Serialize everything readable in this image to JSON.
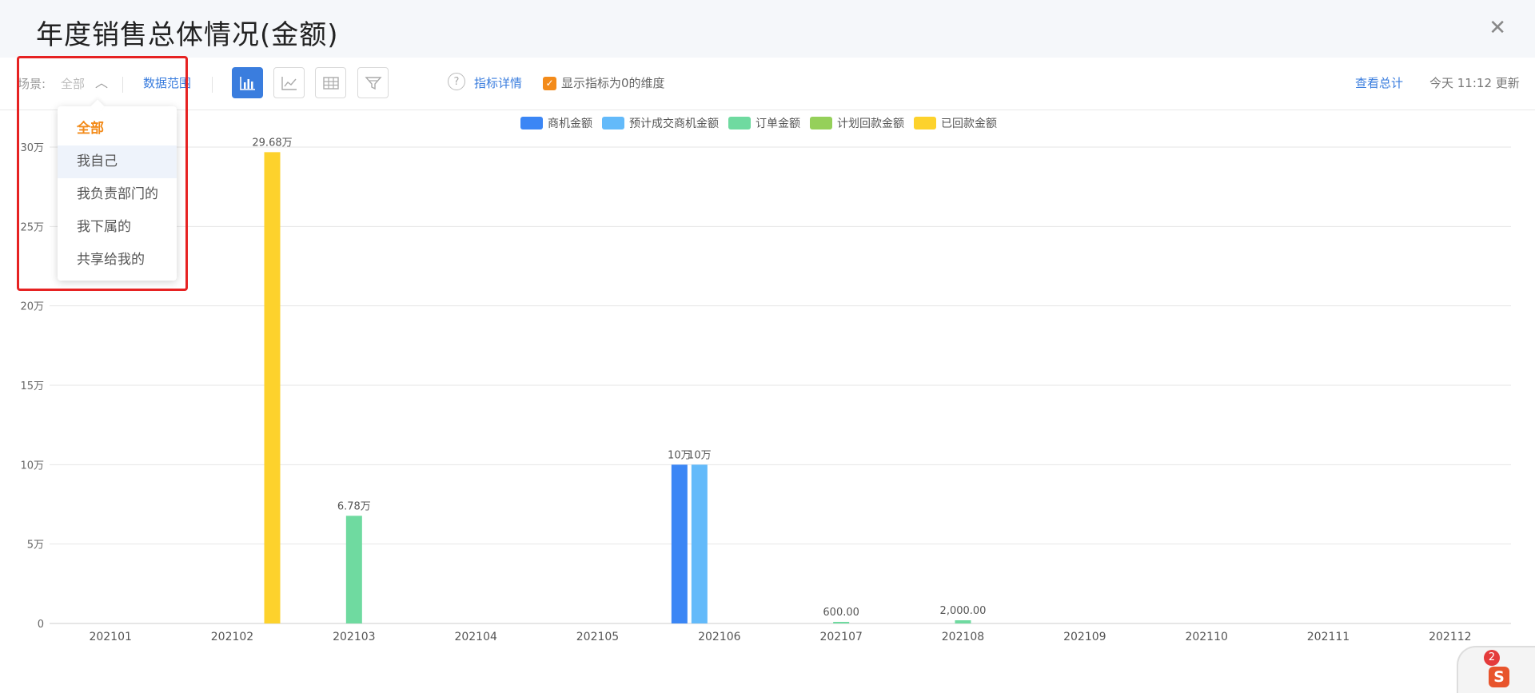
{
  "window": {
    "title": "年度销售总体情况(金额)"
  },
  "toolbar": {
    "scene_label": "场景:",
    "scene_value": "全部",
    "data_range": "数据范围",
    "indicator_details": "指标详情",
    "show_zero_label": "显示指标为0的维度",
    "show_zero_checked": true,
    "view_total": "查看总计",
    "updated": "今天 11:12 更新",
    "chart_types": [
      "bar-chart-icon",
      "line-chart-icon",
      "table-icon",
      "funnel-icon"
    ],
    "active_chart_type": "bar-chart-icon"
  },
  "dropdown": {
    "options": [
      "全部",
      "我自己",
      "我负责部门的",
      "我下属的",
      "共享给我的"
    ],
    "selected": "全部",
    "hovered": "我自己"
  },
  "colors": {
    "opportunity": "#3b86f5",
    "expected": "#63bafa",
    "order": "#6fdaa0",
    "planned": "#95d05a",
    "received": "#fdd22c"
  },
  "chart_data": {
    "type": "bar",
    "categories": [
      "202101",
      "202102",
      "202103",
      "202104",
      "202105",
      "202106",
      "202107",
      "202108",
      "202109",
      "202110",
      "202111",
      "202112"
    ],
    "series": [
      {
        "name": "商机金额",
        "color": "#3b86f5",
        "values": [
          0,
          0,
          0,
          0,
          0,
          100000,
          0,
          0,
          0,
          0,
          0,
          0
        ]
      },
      {
        "name": "预计成交商机金额",
        "color": "#63bafa",
        "values": [
          0,
          0,
          0,
          0,
          0,
          100000,
          0,
          0,
          0,
          0,
          0,
          0
        ]
      },
      {
        "name": "订单金额",
        "color": "#6fdaa0",
        "values": [
          0,
          0,
          67800,
          0,
          0,
          0,
          600,
          2000,
          0,
          0,
          0,
          0
        ]
      },
      {
        "name": "计划回款金额",
        "color": "#95d05a",
        "values": [
          0,
          0,
          0,
          0,
          0,
          0,
          0,
          0,
          0,
          0,
          0,
          0
        ]
      },
      {
        "name": "已回款金额",
        "color": "#fdd22c",
        "values": [
          0,
          296800,
          0,
          0,
          0,
          0,
          0,
          0,
          0,
          0,
          0,
          0
        ]
      }
    ],
    "data_labels": [
      {
        "category": "202102",
        "series": 4,
        "text": "29.68万"
      },
      {
        "category": "202103",
        "series": 2,
        "text": "6.78万"
      },
      {
        "category": "202106",
        "series": 0,
        "text": "10万"
      },
      {
        "category": "202106",
        "series": 1,
        "text": "10万"
      },
      {
        "category": "202107",
        "series": 2,
        "text": "600.00"
      },
      {
        "category": "202108",
        "series": 2,
        "text": "2,000.00"
      }
    ],
    "yticks": [
      {
        "value": 0,
        "label": "0"
      },
      {
        "value": 50000,
        "label": "5万"
      },
      {
        "value": 100000,
        "label": "10万"
      },
      {
        "value": 150000,
        "label": "15万"
      },
      {
        "value": 200000,
        "label": "20万"
      },
      {
        "value": 250000,
        "label": "25万"
      },
      {
        "value": 300000,
        "label": "30万"
      }
    ],
    "ylim": [
      0,
      300000
    ],
    "grid": true,
    "legend_position": "top-center"
  },
  "chat_widget": {
    "badge_count": "2",
    "logo": "S"
  }
}
